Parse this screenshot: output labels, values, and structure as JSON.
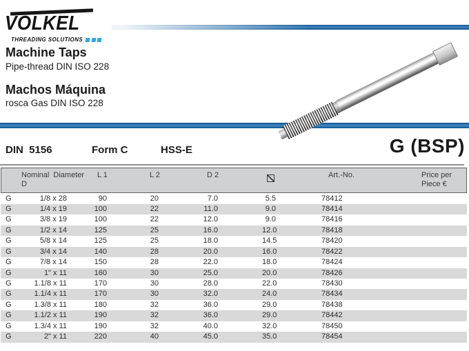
{
  "logo": {
    "brand": "VÖLKEL",
    "tagline": "THREADING SOLUTIONS",
    "accent_squares_color": "#2fa7df"
  },
  "intro": {
    "title_en": "Machine Taps",
    "subtitle_en": "Pipe-thread DIN ISO 228",
    "title_es": "Machos Máquina",
    "subtitle_es": "rosca Gas DIN ISO 228"
  },
  "spec": {
    "din_label": "DIN  5156",
    "form_label": "Form C",
    "grade_label": "HSS-E",
    "thread_label": "G (BSP)"
  },
  "colors": {
    "bar_blue": "#2e77b5",
    "bar_blue_dark": "#0d4e87",
    "header_fill": "#d0d1d3",
    "stripe_fill": "#d9d9d9"
  },
  "icons": {
    "diameter_icon": "⌀"
  },
  "table": {
    "columns": [
      {
        "id": "nominal",
        "header_line1": "Nominal Diameter",
        "header_line2": "D"
      },
      {
        "id": "l1",
        "header": "L 1"
      },
      {
        "id": "l2",
        "header": "L 2"
      },
      {
        "id": "d2",
        "header": "D 2"
      },
      {
        "id": "dia",
        "header": "⌀"
      },
      {
        "id": "art",
        "header": "Art.-No."
      },
      {
        "id": "price",
        "header_line1": "Price per",
        "header_line2": "Piece €"
      }
    ],
    "rows": [
      {
        "g": "G",
        "size": "1/8 x 28",
        "l1": "90",
        "l2": "20",
        "d2": "7.0",
        "dia": "5.5",
        "art": "78412",
        "price": ""
      },
      {
        "g": "G",
        "size": "1/4 x 19",
        "l1": "100",
        "l2": "22",
        "d2": "11.0",
        "dia": "9.0",
        "art": "78414",
        "price": ""
      },
      {
        "g": "G",
        "size": "3/8 x 19",
        "l1": "100",
        "l2": "22",
        "d2": "12.0",
        "dia": "9.0",
        "art": "78416",
        "price": ""
      },
      {
        "g": "G",
        "size": "1/2 x 14",
        "l1": "125",
        "l2": "25",
        "d2": "16.0",
        "dia": "12.0",
        "art": "78418",
        "price": ""
      },
      {
        "g": "G",
        "size": "5/8 x 14",
        "l1": "125",
        "l2": "25",
        "d2": "18.0",
        "dia": "14.5",
        "art": "78420",
        "price": ""
      },
      {
        "g": "G",
        "size": "3/4 x 14",
        "l1": "140",
        "l2": "28",
        "d2": "20.0",
        "dia": "16.0",
        "art": "78422",
        "price": ""
      },
      {
        "g": "G",
        "size": "7/8 x 14",
        "l1": "150",
        "l2": "28",
        "d2": "22.0",
        "dia": "18.0",
        "art": "78424",
        "price": ""
      },
      {
        "g": "G",
        "size": "1\" x 11",
        "l1": "160",
        "l2": "30",
        "d2": "25.0",
        "dia": "20.0",
        "art": "78426",
        "price": ""
      },
      {
        "g": "G",
        "size": "1.1/8 x 11",
        "l1": "170",
        "l2": "30",
        "d2": "28.0",
        "dia": "22.0",
        "art": "78430",
        "price": ""
      },
      {
        "g": "G",
        "size": "1.1/4 x 11",
        "l1": "170",
        "l2": "30",
        "d2": "32.0",
        "dia": "24.0",
        "art": "78434",
        "price": ""
      },
      {
        "g": "G",
        "size": "1.3/8 x 11",
        "l1": "180",
        "l2": "32",
        "d2": "36.0",
        "dia": "29.0",
        "art": "78438",
        "price": ""
      },
      {
        "g": "G",
        "size": "1.1/2 x 11",
        "l1": "190",
        "l2": "32",
        "d2": "36.0",
        "dia": "29.0",
        "art": "78442",
        "price": ""
      },
      {
        "g": "G",
        "size": "1.3/4 x 11",
        "l1": "190",
        "l2": "32",
        "d2": "40.0",
        "dia": "32.0",
        "art": "78450",
        "price": ""
      },
      {
        "g": "G",
        "size": "2\" x 11",
        "l1": "220",
        "l2": "40",
        "d2": "45.0",
        "dia": "35.0",
        "art": "78454",
        "price": ""
      }
    ]
  }
}
